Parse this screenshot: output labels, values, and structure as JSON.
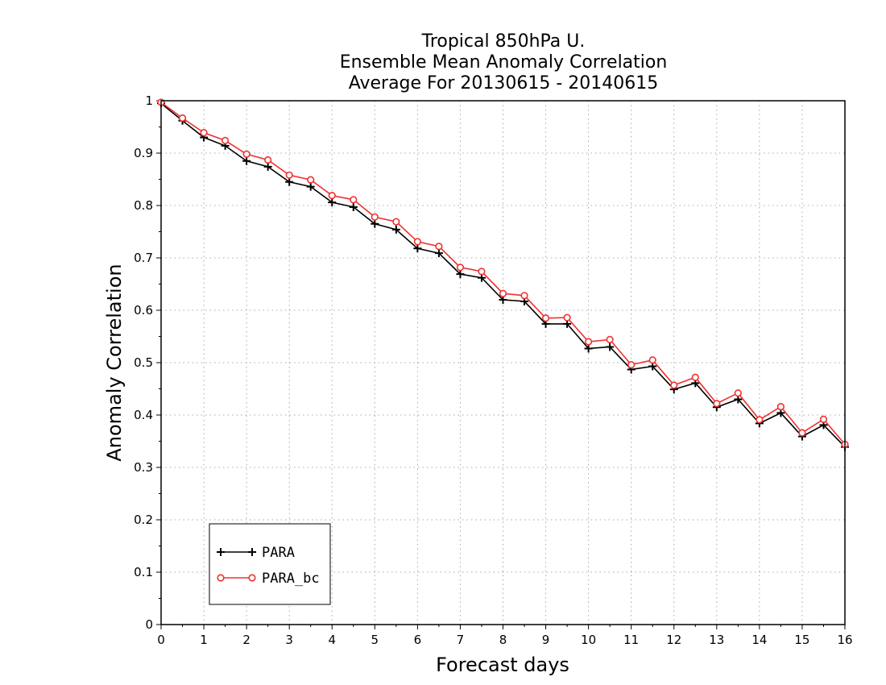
{
  "chart_data": {
    "type": "line",
    "title": [
      "Tropical 850hPa U.",
      "Ensemble Mean Anomaly Correlation",
      "Average For 20130615 - 20140615"
    ],
    "xlabel": "Forecast days",
    "ylabel": "Anomaly Correlation",
    "xlim": [
      0,
      16
    ],
    "ylim": [
      0,
      1
    ],
    "xticks": [
      0,
      1,
      2,
      3,
      4,
      5,
      6,
      7,
      8,
      9,
      10,
      11,
      12,
      13,
      14,
      15,
      16
    ],
    "yticks": [
      0,
      0.1,
      0.2,
      0.3,
      0.4,
      0.5,
      0.6,
      0.7,
      0.8,
      0.9,
      1
    ],
    "grid": true,
    "legend_position": "bottom-left",
    "x": [
      0,
      0.5,
      1,
      1.5,
      2,
      2.5,
      3,
      3.5,
      4,
      4.5,
      5,
      5.5,
      6,
      6.5,
      7,
      7.5,
      8,
      8.5,
      9,
      9.5,
      10,
      10.5,
      11,
      11.5,
      12,
      12.5,
      13,
      13.5,
      14,
      14.5,
      15,
      15.5,
      16
    ],
    "series": [
      {
        "name": "PARA",
        "color": "#000000",
        "marker": "plus",
        "values": [
          0.995,
          0.962,
          0.93,
          0.914,
          0.885,
          0.874,
          0.845,
          0.836,
          0.806,
          0.797,
          0.765,
          0.754,
          0.718,
          0.709,
          0.669,
          0.662,
          0.62,
          0.617,
          0.574,
          0.574,
          0.527,
          0.53,
          0.487,
          0.493,
          0.449,
          0.461,
          0.415,
          0.43,
          0.384,
          0.404,
          0.359,
          0.381,
          0.339
        ]
      },
      {
        "name": "PARA_bc",
        "color": "#f03030",
        "marker": "circle",
        "values": [
          0.997,
          0.967,
          0.939,
          0.924,
          0.898,
          0.887,
          0.858,
          0.849,
          0.819,
          0.811,
          0.778,
          0.769,
          0.731,
          0.722,
          0.682,
          0.674,
          0.632,
          0.628,
          0.585,
          0.586,
          0.54,
          0.544,
          0.496,
          0.505,
          0.457,
          0.472,
          0.422,
          0.442,
          0.391,
          0.416,
          0.366,
          0.392,
          0.344
        ]
      }
    ]
  }
}
